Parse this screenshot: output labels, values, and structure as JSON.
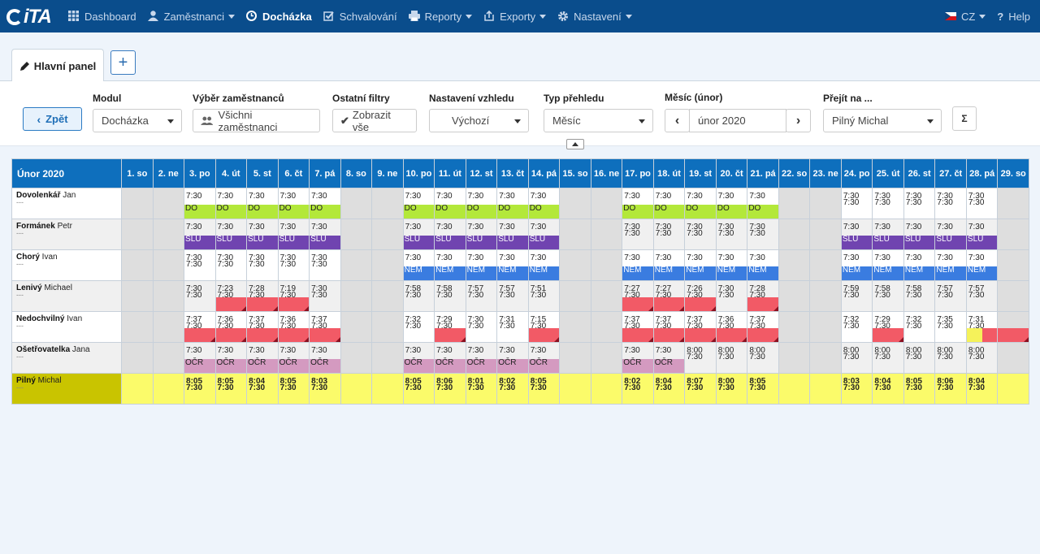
{
  "nav": {
    "logo": "iTA",
    "items": [
      {
        "label": "Dashboard",
        "icon": "grid-icon",
        "caret": false,
        "active": false
      },
      {
        "label": "Zaměstnanci",
        "icon": "user-icon",
        "caret": true,
        "active": false
      },
      {
        "label": "Docházka",
        "icon": "clock-icon",
        "caret": false,
        "active": true
      },
      {
        "label": "Schvalování",
        "icon": "check-square-icon",
        "caret": false,
        "active": false
      },
      {
        "label": "Reporty",
        "icon": "print-icon",
        "caret": true,
        "active": false
      },
      {
        "label": "Exporty",
        "icon": "export-icon",
        "caret": true,
        "active": false
      },
      {
        "label": "Nastavení",
        "icon": "gear-icon",
        "caret": true,
        "active": false
      }
    ],
    "lang": "CZ",
    "help": "Help"
  },
  "tabs": {
    "main": "Hlavní panel",
    "add": "+"
  },
  "filters": {
    "back": "Zpět",
    "modul_label": "Modul",
    "modul_value": "Docházka",
    "employees_label": "Výběr zaměstnanců",
    "employees_value": "Všichni zaměstnanci",
    "other_label": "Ostatní filtry",
    "other_value": "Zobrazit vše",
    "look_label": "Nastavení vzhledu",
    "look_value": "Výchozí",
    "type_label": "Typ přehledu",
    "type_value": "Měsíc",
    "month_label": "Měsíc (únor)",
    "month_value": "únor 2020",
    "goto_label": "Přejít na ...",
    "goto_value": "Pilný Michal",
    "sum": "Σ"
  },
  "grid": {
    "title": "Únor 2020",
    "days": [
      "1. so",
      "2. ne",
      "3. po",
      "4. út",
      "5. st",
      "6. čt",
      "7. pá",
      "8. so",
      "9. ne",
      "10. po",
      "11. út",
      "12. st",
      "13. čt",
      "14. pá",
      "15. so",
      "16. ne",
      "17. po",
      "18. út",
      "19. st",
      "20. čt",
      "21. pá",
      "22. so",
      "23. ne",
      "24. po",
      "25. út",
      "26. st",
      "27. čt",
      "28. pá",
      "29. so"
    ],
    "weekend_idx": [
      0,
      1,
      7,
      8,
      14,
      15,
      21,
      22,
      28
    ],
    "rows": [
      {
        "last": "Dovolenkář",
        "first": "Jan",
        "sub": "---",
        "cells": [
          null,
          null,
          [
            "7:30",
            "",
            "DO"
          ],
          [
            "7:30",
            "",
            "DO"
          ],
          [
            "7:30",
            "",
            "DO"
          ],
          [
            "7:30",
            "",
            "DO"
          ],
          [
            "7:30",
            "",
            "DO"
          ],
          null,
          null,
          [
            "7:30",
            "",
            "DO"
          ],
          [
            "7:30",
            "",
            "DO"
          ],
          [
            "7:30",
            "",
            "DO"
          ],
          [
            "7:30",
            "",
            "DO"
          ],
          [
            "7:30",
            "",
            "DO"
          ],
          null,
          null,
          [
            "7:30",
            "",
            "DO"
          ],
          [
            "7:30",
            "",
            "DO"
          ],
          [
            "7:30",
            "",
            "DO"
          ],
          [
            "7:30",
            "",
            "DO"
          ],
          [
            "7:30",
            "",
            "DO"
          ],
          null,
          null,
          [
            "7:30",
            "7:30",
            ""
          ],
          [
            "7:30",
            "7:30",
            ""
          ],
          [
            "7:30",
            "7:30",
            ""
          ],
          [
            "7:30",
            "7:30",
            ""
          ],
          [
            "7:30",
            "7:30",
            ""
          ],
          null
        ]
      },
      {
        "last": "Formánek",
        "first": "Petr",
        "sub": "---",
        "cells": [
          null,
          null,
          [
            "7:30",
            "",
            "SLU"
          ],
          [
            "7:30",
            "",
            "SLU"
          ],
          [
            "7:30",
            "",
            "SLU"
          ],
          [
            "7:30",
            "",
            "SLU"
          ],
          [
            "7:30",
            "",
            "SLU"
          ],
          null,
          null,
          [
            "7:30",
            "",
            "SLU"
          ],
          [
            "7:30",
            "",
            "SLU"
          ],
          [
            "7:30",
            "",
            "SLU"
          ],
          [
            "7:30",
            "",
            "SLU"
          ],
          [
            "7:30",
            "",
            "SLU"
          ],
          null,
          null,
          [
            "7:30",
            "7:30",
            ""
          ],
          [
            "7:30",
            "7:30",
            ""
          ],
          [
            "7:30",
            "7:30",
            ""
          ],
          [
            "7:30",
            "7:30",
            ""
          ],
          [
            "7:30",
            "7:30",
            ""
          ],
          null,
          null,
          [
            "7:30",
            "",
            "SLU"
          ],
          [
            "7:30",
            "",
            "SLU"
          ],
          [
            "7:30",
            "",
            "SLU"
          ],
          [
            "7:30",
            "",
            "SLU"
          ],
          [
            "7:30",
            "",
            "SLU"
          ],
          null
        ]
      },
      {
        "last": "Chorý",
        "first": "Ivan",
        "sub": "---",
        "cells": [
          null,
          null,
          [
            "7:30",
            "7:30",
            ""
          ],
          [
            "7:30",
            "7:30",
            ""
          ],
          [
            "7:30",
            "7:30",
            ""
          ],
          [
            "7:30",
            "7:30",
            ""
          ],
          [
            "7:30",
            "7:30",
            ""
          ],
          null,
          null,
          [
            "7:30",
            "",
            "NEM"
          ],
          [
            "7:30",
            "",
            "NEM"
          ],
          [
            "7:30",
            "",
            "NEM"
          ],
          [
            "7:30",
            "",
            "NEM"
          ],
          [
            "7:30",
            "",
            "NEM"
          ],
          null,
          null,
          [
            "7:30",
            "",
            "NEM"
          ],
          [
            "7:30",
            "",
            "NEM"
          ],
          [
            "7:30",
            "",
            "NEM"
          ],
          [
            "7:30",
            "",
            "NEM"
          ],
          [
            "7:30",
            "",
            "NEM"
          ],
          null,
          null,
          [
            "7:30",
            "",
            "NEM"
          ],
          [
            "7:30",
            "",
            "NEM"
          ],
          [
            "7:30",
            "",
            "NEM"
          ],
          [
            "7:30",
            "",
            "NEM"
          ],
          [
            "7:30",
            "",
            "NEM"
          ],
          null
        ]
      },
      {
        "last": "Lenivý",
        "first": "Michael",
        "sub": "---",
        "cells": [
          null,
          null,
          [
            "7:30",
            "7:30",
            ""
          ],
          [
            "7:23",
            "7:30",
            "ERR"
          ],
          [
            "7:28",
            "7:30",
            "ERR"
          ],
          [
            "7:19",
            "7:30",
            "ERR"
          ],
          [
            "7:30",
            "7:30",
            ""
          ],
          null,
          null,
          [
            "7:58",
            "7:30",
            ""
          ],
          [
            "7:58",
            "7:30",
            ""
          ],
          [
            "7:57",
            "7:30",
            ""
          ],
          [
            "7:57",
            "7:30",
            ""
          ],
          [
            "7:51",
            "7:30",
            ""
          ],
          null,
          null,
          [
            "7:27",
            "7:30",
            "ERR"
          ],
          [
            "7:27",
            "7:30",
            "ERR"
          ],
          [
            "7:26",
            "7:30",
            "ERR"
          ],
          [
            "7:30",
            "7:30",
            ""
          ],
          [
            "7:28",
            "7:30",
            "ERR"
          ],
          null,
          null,
          [
            "7:59",
            "7:30",
            ""
          ],
          [
            "7:58",
            "7:30",
            ""
          ],
          [
            "7:58",
            "7:30",
            ""
          ],
          [
            "7:57",
            "7:30",
            ""
          ],
          [
            "7:57",
            "7:30",
            ""
          ],
          null
        ]
      },
      {
        "last": "Nedochvilný",
        "first": "Ivan",
        "sub": "---",
        "cells": [
          null,
          null,
          [
            "7:37",
            "7:30",
            "ERR"
          ],
          [
            "7:36",
            "7:30",
            "ERR"
          ],
          [
            "7:37",
            "7:30",
            "ERR"
          ],
          [
            "7:36",
            "7:30",
            "ERR"
          ],
          [
            "7:37",
            "7:30",
            "ERR"
          ],
          null,
          null,
          [
            "7:32",
            "7:30",
            ""
          ],
          [
            "7:29",
            "7:30",
            "ERR"
          ],
          [
            "7:30",
            "7:30",
            ""
          ],
          [
            "7:31",
            "7:30",
            ""
          ],
          [
            "7:15",
            "7:30",
            "ERR"
          ],
          null,
          null,
          [
            "7:37",
            "7:30",
            "ERR"
          ],
          [
            "7:37",
            "7:30",
            "ERR"
          ],
          [
            "7:37",
            "7:30",
            "ERR"
          ],
          [
            "7:36",
            "7:30",
            "ERR"
          ],
          [
            "7:37",
            "7:30",
            "ERR"
          ],
          null,
          null,
          [
            "7:32",
            "7:30",
            ""
          ],
          [
            "7:29",
            "7:30",
            "ERR"
          ],
          [
            "7:32",
            "7:30",
            ""
          ],
          [
            "7:35",
            "7:30",
            ""
          ],
          [
            "7:31",
            "7:30",
            "SPLIT"
          ],
          [
            "",
            "",
            "ERR"
          ]
        ]
      },
      {
        "last": "Ošetřovatelka",
        "first": "Jana",
        "sub": "---",
        "cells": [
          null,
          null,
          [
            "7:30",
            "",
            "OCR"
          ],
          [
            "7:30",
            "",
            "OCR"
          ],
          [
            "7:30",
            "",
            "OCR"
          ],
          [
            "7:30",
            "",
            "OCR"
          ],
          [
            "7:30",
            "",
            "OCR"
          ],
          null,
          null,
          [
            "7:30",
            "",
            "OCR"
          ],
          [
            "7:30",
            "",
            "OCR"
          ],
          [
            "7:30",
            "",
            "OCR"
          ],
          [
            "7:30",
            "",
            "OCR"
          ],
          [
            "7:30",
            "",
            "OCR"
          ],
          null,
          null,
          [
            "7:30",
            "",
            "OCR"
          ],
          [
            "7:30",
            "",
            "OCR"
          ],
          [
            "8:00",
            "7:30",
            ""
          ],
          [
            "8:00",
            "7:30",
            ""
          ],
          [
            "8:00",
            "7:30",
            ""
          ],
          null,
          null,
          [
            "8:00",
            "7:30",
            ""
          ],
          [
            "8:00",
            "7:30",
            ""
          ],
          [
            "8:00",
            "7:30",
            ""
          ],
          [
            "8:00",
            "7:30",
            ""
          ],
          [
            "8:00",
            "7:30",
            ""
          ],
          null
        ]
      },
      {
        "last": "Pilný",
        "first": "Michal",
        "sub": "---",
        "highlight": true,
        "cells": [
          null,
          null,
          [
            "8:05",
            "7:30",
            ""
          ],
          [
            "8:05",
            "7:30",
            ""
          ],
          [
            "8:04",
            "7:30",
            ""
          ],
          [
            "8:05",
            "7:30",
            ""
          ],
          [
            "8:03",
            "7:30",
            ""
          ],
          null,
          null,
          [
            "8:05",
            "7:30",
            ""
          ],
          [
            "8:06",
            "7:30",
            ""
          ],
          [
            "8:01",
            "7:30",
            ""
          ],
          [
            "8:02",
            "7:30",
            ""
          ],
          [
            "8:05",
            "7:30",
            ""
          ],
          null,
          null,
          [
            "8:02",
            "7:30",
            ""
          ],
          [
            "8:04",
            "7:30",
            ""
          ],
          [
            "8:07",
            "7:30",
            ""
          ],
          [
            "8:00",
            "7:30",
            ""
          ],
          [
            "8:05",
            "7:30",
            ""
          ],
          null,
          null,
          [
            "8:03",
            "7:30",
            ""
          ],
          [
            "8:04",
            "7:30",
            ""
          ],
          [
            "8:05",
            "7:30",
            ""
          ],
          [
            "8:06",
            "7:30",
            ""
          ],
          [
            "8:04",
            "7:30",
            ""
          ],
          null
        ]
      }
    ],
    "codes": {
      "DO": "DO",
      "SLU": "SLU",
      "NEM": "NEM",
      "OCR": "OČR"
    }
  }
}
